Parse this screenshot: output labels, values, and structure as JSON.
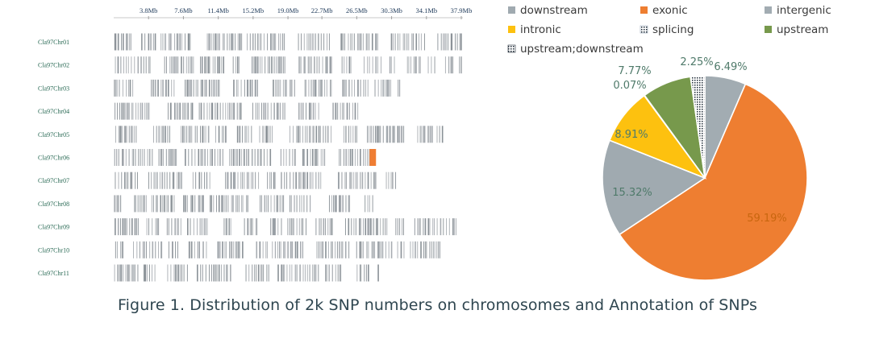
{
  "caption": "Figure 1. Distribution of 2k SNP numbers on chromosomes and Annotation of SNPs",
  "chart_data": [
    {
      "type": "density",
      "axis_ticks": [
        "3.8Mb",
        "7.6Mb",
        "11.4Mb",
        "15.2Mb",
        "19.0Mb",
        "22.7Mb",
        "26.5Mb",
        "30.3Mb",
        "34.1Mb",
        "37.9Mb"
      ],
      "chromosomes": [
        {
          "name": "Cla97Chr01",
          "length_mb": 37.9
        },
        {
          "name": "Cla97Chr02",
          "length_mb": 37.9
        },
        {
          "name": "Cla97Chr03",
          "length_mb": 31.2
        },
        {
          "name": "Cla97Chr04",
          "length_mb": 26.6
        },
        {
          "name": "Cla97Chr05",
          "length_mb": 36.1
        },
        {
          "name": "Cla97Chr06",
          "length_mb": 29.3,
          "highlight_mb": [
            27.9,
            28.6
          ]
        },
        {
          "name": "Cla97Chr07",
          "length_mb": 30.8
        },
        {
          "name": "Cla97Chr08",
          "length_mb": 28.4
        },
        {
          "name": "Cla97Chr09",
          "length_mb": 38.2
        },
        {
          "name": "Cla97Chr10",
          "length_mb": 36.0
        },
        {
          "name": "Cla97Chr11",
          "length_mb": 29.0
        }
      ],
      "colors": {
        "snp": "#8f969c",
        "highlight": "#ef7d33"
      }
    },
    {
      "type": "pie",
      "legend_position": "top",
      "slices": [
        {
          "name": "intergenic",
          "value": 6.49,
          "label": "6.49%",
          "color": "#a2acb2"
        },
        {
          "name": "exonic",
          "value": 59.19,
          "label": "59.19%",
          "color": "#ee7e31"
        },
        {
          "name": "downstream",
          "value": 15.32,
          "label": "15.32%",
          "color": "#a0aab0"
        },
        {
          "name": "intronic",
          "value": 8.91,
          "label": "8.91%",
          "color": "#fdc10f"
        },
        {
          "name": "splicing",
          "value": 0.07,
          "label": "0.07%",
          "color": "#9aa8b8"
        },
        {
          "name": "upstream",
          "value": 7.77,
          "label": "7.77%",
          "color": "#77994c"
        },
        {
          "name": "upstream;downstream",
          "value": 2.25,
          "label": "2.25%",
          "color": "#1e2a36"
        }
      ],
      "legend": [
        {
          "label": "downstream",
          "color": "#a0aab0"
        },
        {
          "label": "exonic",
          "color": "#ee7e31"
        },
        {
          "label": "intergenic",
          "color": "#a2acb2"
        },
        {
          "label": "intronic",
          "color": "#fdc10f"
        },
        {
          "label": "splicing",
          "color": "#9aa8b8",
          "pattern": "dotted"
        },
        {
          "label": "upstream",
          "color": "#77994c"
        },
        {
          "label": "upstream;downstream",
          "color": "#1e2a36",
          "pattern": "dotted"
        }
      ]
    }
  ]
}
